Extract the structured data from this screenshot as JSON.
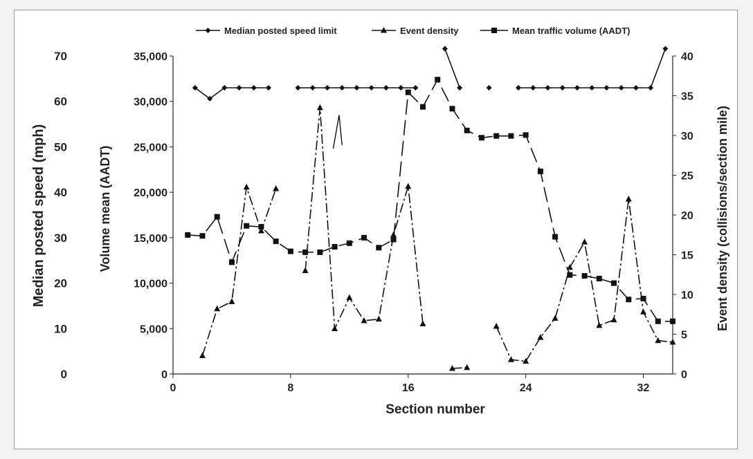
{
  "chart_data": {
    "type": "line",
    "title": "",
    "xlabel": "Section number",
    "x_ticks": [
      0,
      8,
      16,
      24,
      32
    ],
    "xlim": [
      0,
      34
    ],
    "y_axes": {
      "speed": {
        "label": "Median posted speed (mph)",
        "ylim": [
          0,
          70
        ],
        "ticks": [
          "0",
          "10",
          "20",
          "30",
          "40",
          "50",
          "60",
          "70"
        ],
        "tick_values": [
          0,
          10,
          20,
          30,
          40,
          50,
          60,
          70
        ]
      },
      "volume": {
        "label": "Volume mean (AADT)",
        "ylim": [
          0,
          35000
        ],
        "ticks": [
          "0",
          "5,000",
          "10,000",
          "15,000",
          "20,000",
          "25,000",
          "30,000",
          "35,000"
        ],
        "tick_values": [
          0,
          5000,
          10000,
          15000,
          20000,
          25000,
          30000,
          35000
        ]
      },
      "density": {
        "label": "Event density (collisions/section mile)",
        "ylim": [
          0,
          40
        ],
        "ticks": [
          "0",
          "5",
          "10",
          "15",
          "20",
          "25",
          "30",
          "35",
          "40"
        ],
        "tick_values": [
          0,
          5,
          10,
          15,
          20,
          25,
          30,
          35,
          40
        ]
      }
    },
    "legend": "top",
    "series": [
      {
        "name": "Median posted speed limit",
        "axis": "volume",
        "marker": "diamond",
        "dash": "",
        "segments": [
          [
            [
              1.5,
              31500
            ],
            [
              2.5,
              30300
            ],
            [
              3.5,
              31500
            ],
            [
              4.5,
              31500
            ],
            [
              5.5,
              31500
            ],
            [
              6.5,
              31500
            ]
          ],
          [
            [
              8.5,
              31500
            ],
            [
              9.5,
              31500
            ],
            [
              10.5,
              31500
            ],
            [
              11.5,
              31500
            ],
            [
              12.5,
              31500
            ],
            [
              13.5,
              31500
            ],
            [
              14.5,
              31500
            ],
            [
              15.5,
              31500
            ],
            [
              16.5,
              31500
            ]
          ],
          [
            [
              18.5,
              35800
            ],
            [
              19.5,
              31500
            ]
          ],
          [
            [
              21.5,
              31500
            ]
          ],
          [
            [
              23.5,
              31500
            ],
            [
              24.5,
              31500
            ],
            [
              25.5,
              31500
            ],
            [
              26.5,
              31500
            ],
            [
              27.5,
              31500
            ],
            [
              28.5,
              31500
            ],
            [
              29.5,
              31500
            ],
            [
              30.5,
              31500
            ],
            [
              31.5,
              31500
            ],
            [
              32.5,
              31500
            ],
            [
              33.5,
              35800
            ]
          ]
        ]
      },
      {
        "name": "Event density",
        "axis": "density",
        "marker": "triangle",
        "dash": "14,4,3,4",
        "segments": [
          [
            [
              2,
              2.3
            ],
            [
              3,
              8.2
            ],
            [
              4,
              9.1
            ],
            [
              5,
              23.5
            ],
            [
              6,
              18
            ],
            [
              7,
              23.3
            ]
          ],
          [
            [
              9,
              13
            ],
            [
              10,
              33.5
            ],
            [
              11,
              5.7
            ],
            [
              12,
              9.6
            ],
            [
              13,
              6.7
            ],
            [
              14,
              6.9
            ],
            [
              15,
              17.5
            ],
            [
              16,
              23.6
            ],
            [
              17,
              6.3
            ]
          ],
          [
            [
              19,
              0.7
            ],
            [
              20,
              0.8
            ]
          ],
          [
            [
              22,
              6
            ],
            [
              23,
              1.8
            ],
            [
              24,
              1.6
            ],
            [
              25,
              4.6
            ],
            [
              26,
              7
            ],
            [
              27,
              13.4
            ],
            [
              28,
              16.6
            ],
            [
              29,
              6.1
            ],
            [
              30,
              6.8
            ],
            [
              31,
              22
            ],
            [
              32,
              7.8
            ],
            [
              33,
              4.2
            ],
            [
              34,
              4
            ]
          ]
        ]
      },
      {
        "name": "Mean traffic volume (AADT)",
        "axis": "volume",
        "marker": "square",
        "dash": "22,8",
        "segments": [
          [
            [
              1,
              15300
            ],
            [
              2,
              15200
            ],
            [
              3,
              17300
            ],
            [
              4,
              12300
            ],
            [
              5,
              16300
            ],
            [
              6,
              16200
            ],
            [
              7,
              14600
            ],
            [
              8,
              13500
            ],
            [
              9,
              13400
            ],
            [
              10,
              13400
            ],
            [
              11,
              14000
            ],
            [
              12,
              14400
            ],
            [
              13,
              15000
            ],
            [
              14,
              13900
            ],
            [
              15,
              14800
            ],
            [
              16,
              31000
            ],
            [
              17,
              29400
            ],
            [
              18,
              32400
            ],
            [
              19,
              29200
            ],
            [
              20,
              26800
            ],
            [
              21,
              26000
            ],
            [
              22,
              26200
            ],
            [
              23,
              26200
            ],
            [
              24,
              26300
            ],
            [
              25,
              22300
            ],
            [
              26,
              15100
            ],
            [
              27,
              10900
            ],
            [
              28,
              10800
            ],
            [
              29,
              10500
            ],
            [
              30,
              10000
            ],
            [
              31,
              8200
            ],
            [
              32,
              8300
            ],
            [
              33,
              5800
            ],
            [
              34,
              5800
            ]
          ]
        ]
      }
    ],
    "annotations": [
      {
        "type": "stroke",
        "axis": "volume",
        "points": [
          [
            10.9,
            24800
          ],
          [
            11.3,
            28500
          ],
          [
            11.5,
            25200
          ]
        ]
      }
    ]
  }
}
